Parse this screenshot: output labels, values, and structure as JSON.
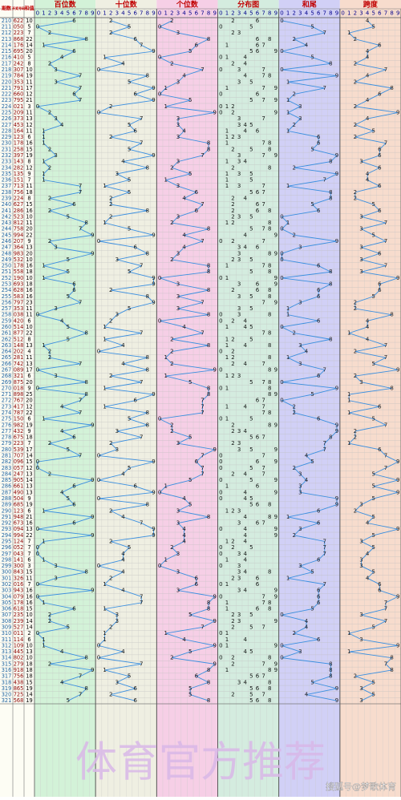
{
  "header": {
    "period": "期数",
    "number": "开奖号码",
    "sum": "和值",
    "groups": [
      "百位数",
      "十位数",
      "个位数",
      "分布图",
      "和尾",
      "跨度"
    ],
    "digits": [
      0,
      1,
      2,
      3,
      4,
      5,
      6,
      7,
      8,
      9
    ]
  },
  "rows": [
    {
      "period": 210,
      "number": "622",
      "sum": 10,
      "digits": [
        6,
        2,
        2
      ],
      "tail": 0,
      "span": 4
    },
    {
      "period": 211,
      "number": "050",
      "sum": 5,
      "digits": [
        0,
        5,
        0
      ],
      "tail": 5,
      "span": 5
    },
    {
      "period": 212,
      "number": "223",
      "sum": 7,
      "digits": [
        2,
        2,
        3
      ],
      "tail": 7,
      "span": 1
    },
    {
      "period": 213,
      "number": "868",
      "sum": 22,
      "digits": [
        8,
        6,
        8
      ],
      "tail": 2,
      "span": 2
    },
    {
      "period": 214,
      "number": "176",
      "sum": 14,
      "digits": [
        1,
        7,
        6
      ],
      "tail": 4,
      "span": 6
    },
    {
      "period": 215,
      "number": "695",
      "sum": 20,
      "digits": [
        6,
        9,
        5
      ],
      "tail": 0,
      "span": 4
    },
    {
      "period": 216,
      "number": "410",
      "sum": 5,
      "digits": [
        4,
        1,
        0
      ],
      "tail": 5,
      "span": 4
    },
    {
      "period": 217,
      "number": "242",
      "sum": 8,
      "digits": [
        2,
        4,
        2
      ],
      "tail": 8,
      "span": 2
    },
    {
      "period": 218,
      "number": "307",
      "sum": 10,
      "digits": [
        3,
        0,
        7
      ],
      "tail": 0,
      "span": 7
    },
    {
      "period": 219,
      "number": "784",
      "sum": 19,
      "digits": [
        7,
        8,
        4
      ],
      "tail": 9,
      "span": 4
    },
    {
      "period": 220,
      "number": "353",
      "sum": 11,
      "digits": [
        3,
        5,
        3
      ],
      "tail": 1,
      "span": 2
    },
    {
      "period": 221,
      "number": "791",
      "sum": 17,
      "digits": [
        7,
        9,
        1
      ],
      "tail": 7,
      "span": 8
    },
    {
      "period": 222,
      "number": "660",
      "sum": 12,
      "digits": [
        6,
        6,
        0
      ],
      "tail": 2,
      "span": 6
    },
    {
      "period": 223,
      "number": "795",
      "sum": 21,
      "digits": [
        7,
        9,
        5
      ],
      "tail": 1,
      "span": 4
    },
    {
      "period": 224,
      "number": "021",
      "sum": 3,
      "digits": [
        0,
        2,
        1
      ],
      "tail": 3,
      "span": 2
    },
    {
      "period": 225,
      "number": "209",
      "sum": 11,
      "digits": [
        2,
        0,
        9
      ],
      "tail": 1,
      "span": 9
    },
    {
      "period": 226,
      "number": "373",
      "sum": 13,
      "digits": [
        3,
        7,
        3
      ],
      "tail": 3,
      "span": 4
    },
    {
      "period": 227,
      "number": "453",
      "sum": 12,
      "digits": [
        4,
        5,
        3
      ],
      "tail": 2,
      "span": 2
    },
    {
      "period": 228,
      "number": "164",
      "sum": 11,
      "digits": [
        1,
        6,
        4
      ],
      "tail": 1,
      "span": 5
    },
    {
      "period": 229,
      "number": "123",
      "sum": 6,
      "digits": [
        1,
        2,
        3
      ],
      "tail": 6,
      "span": 2
    },
    {
      "period": 230,
      "number": "178",
      "sum": 16,
      "digits": [
        1,
        7,
        8
      ],
      "tail": 6,
      "span": 7
    },
    {
      "period": 231,
      "number": "258",
      "sum": 15,
      "digits": [
        2,
        5,
        8
      ],
      "tail": 5,
      "span": 6
    },
    {
      "period": 232,
      "number": "397",
      "sum": 19,
      "digits": [
        3,
        9,
        7
      ],
      "tail": 9,
      "span": 6
    },
    {
      "period": 233,
      "number": "143",
      "sum": 8,
      "digits": [
        1,
        4,
        3
      ],
      "tail": 8,
      "span": 3
    },
    {
      "period": 234,
      "number": "282",
      "sum": 12,
      "digits": [
        2,
        8,
        2
      ],
      "tail": 2,
      "span": 6
    },
    {
      "period": 235,
      "number": "135",
      "sum": 9,
      "digits": [
        1,
        3,
        5
      ],
      "tail": 9,
      "span": 4
    },
    {
      "period": 236,
      "number": "151",
      "sum": 7,
      "digits": [
        1,
        5,
        1
      ],
      "tail": 7,
      "span": 4
    },
    {
      "period": 237,
      "number": "713",
      "sum": 11,
      "digits": [
        7,
        1,
        3
      ],
      "tail": 1,
      "span": 6
    },
    {
      "period": 238,
      "number": "756",
      "sum": 18,
      "digits": [
        7,
        5,
        6
      ],
      "tail": 8,
      "span": 2
    },
    {
      "period": 239,
      "number": "224",
      "sum": 8,
      "digits": [
        2,
        2,
        4
      ],
      "tail": 8,
      "span": 2
    },
    {
      "period": 240,
      "number": "627",
      "sum": 15,
      "digits": [
        6,
        2,
        7
      ],
      "tail": 5,
      "span": 5
    },
    {
      "period": 241,
      "number": "286",
      "sum": 16,
      "digits": [
        2,
        8,
        6
      ],
      "tail": 6,
      "span": 6
    },
    {
      "period": 242,
      "number": "523",
      "sum": 10,
      "digits": [
        5,
        2,
        3
      ],
      "tail": 0,
      "span": 3
    },
    {
      "period": 243,
      "number": "812",
      "sum": 11,
      "digits": [
        8,
        1,
        2
      ],
      "tail": 1,
      "span": 7
    },
    {
      "period": 244,
      "number": "758",
      "sum": 20,
      "digits": [
        7,
        5,
        8
      ],
      "tail": 0,
      "span": 3
    },
    {
      "period": 245,
      "number": "994",
      "sum": 22,
      "digits": [
        9,
        9,
        4
      ],
      "tail": 2,
      "span": 5
    },
    {
      "period": 246,
      "number": "207",
      "sum": 9,
      "digits": [
        2,
        0,
        7
      ],
      "tail": 9,
      "span": 7
    },
    {
      "period": 247,
      "number": "364",
      "sum": 13,
      "digits": [
        3,
        6,
        4
      ],
      "tail": 3,
      "span": 3
    },
    {
      "period": 248,
      "number": "983",
      "sum": 20,
      "digits": [
        9,
        8,
        3
      ],
      "tail": 0,
      "span": 6
    },
    {
      "period": 249,
      "number": "532",
      "sum": 10,
      "digits": [
        5,
        3,
        2
      ],
      "tail": 0,
      "span": 3
    },
    {
      "period": 250,
      "number": "178",
      "sum": 16,
      "digits": [
        1,
        7,
        8
      ],
      "tail": 6,
      "span": 7
    },
    {
      "period": 251,
      "number": "558",
      "sum": 18,
      "digits": [
        5,
        5,
        8
      ],
      "tail": 8,
      "span": 3
    },
    {
      "period": 252,
      "number": "190",
      "sum": 10,
      "digits": [
        1,
        9,
        0
      ],
      "tail": 0,
      "span": 9
    },
    {
      "period": 253,
      "number": "693",
      "sum": 18,
      "digits": [
        6,
        9,
        3
      ],
      "tail": 8,
      "span": 6
    },
    {
      "period": 254,
      "number": "628",
      "sum": 16,
      "digits": [
        6,
        2,
        8
      ],
      "tail": 6,
      "span": 6
    },
    {
      "period": 255,
      "number": "583",
      "sum": 16,
      "digits": [
        5,
        8,
        3
      ],
      "tail": 6,
      "span": 5
    },
    {
      "period": 256,
      "number": "797",
      "sum": 23,
      "digits": [
        7,
        9,
        7
      ],
      "tail": 3,
      "span": 2
    },
    {
      "period": 257,
      "number": "353",
      "sum": 11,
      "digits": [
        3,
        5,
        3
      ],
      "tail": 1,
      "span": 2
    },
    {
      "period": 258,
      "number": "038",
      "sum": 11,
      "digits": [
        0,
        3,
        8
      ],
      "tail": 1,
      "span": 8
    },
    {
      "period": 259,
      "number": "420",
      "sum": 6,
      "digits": [
        4,
        2,
        0
      ],
      "tail": 6,
      "span": 4
    },
    {
      "period": 260,
      "number": "514",
      "sum": 10,
      "digits": [
        5,
        1,
        4
      ],
      "tail": 0,
      "span": 4
    },
    {
      "period": 261,
      "number": "877",
      "sum": 22,
      "digits": [
        8,
        7,
        7
      ],
      "tail": 2,
      "span": 1
    },
    {
      "period": 262,
      "number": "512",
      "sum": 8,
      "digits": [
        5,
        1,
        2
      ],
      "tail": 8,
      "span": 4
    },
    {
      "period": 263,
      "number": "148",
      "sum": 13,
      "digits": [
        1,
        4,
        8
      ],
      "tail": 3,
      "span": 7
    },
    {
      "period": 264,
      "number": "202",
      "sum": 4,
      "digits": [
        2,
        0,
        2
      ],
      "tail": 4,
      "span": 2
    },
    {
      "period": 265,
      "number": "281",
      "sum": 11,
      "digits": [
        2,
        8,
        1
      ],
      "tail": 1,
      "span": 7
    },
    {
      "period": 266,
      "number": "742",
      "sum": 13,
      "digits": [
        7,
        4,
        2
      ],
      "tail": 3,
      "span": 5
    },
    {
      "period": 267,
      "number": "089",
      "sum": 17,
      "digits": [
        0,
        8,
        9
      ],
      "tail": 7,
      "span": 9
    },
    {
      "period": 268,
      "number": "321",
      "sum": 6,
      "digits": [
        3,
        2,
        1
      ],
      "tail": 6,
      "span": 2
    },
    {
      "period": 269,
      "number": "875",
      "sum": 20,
      "digits": [
        8,
        7,
        5
      ],
      "tail": 0,
      "span": 3
    },
    {
      "period": 270,
      "number": "018",
      "sum": 9,
      "digits": [
        0,
        1,
        8
      ],
      "tail": 9,
      "span": 8
    },
    {
      "period": 271,
      "number": "898",
      "sum": 25,
      "digits": [
        8,
        9,
        8
      ],
      "tail": 5,
      "span": 1
    },
    {
      "period": 272,
      "number": "767",
      "sum": 20,
      "digits": [
        7,
        6,
        7
      ],
      "tail": 0,
      "span": 1
    },
    {
      "period": 273,
      "number": "417",
      "sum": 12,
      "digits": [
        4,
        1,
        7
      ],
      "tail": 2,
      "span": 6
    },
    {
      "period": 274,
      "number": "787",
      "sum": 22,
      "digits": [
        7,
        8,
        7
      ],
      "tail": 2,
      "span": 1
    },
    {
      "period": 275,
      "number": "150",
      "sum": 6,
      "digits": [
        1,
        5,
        0
      ],
      "tail": 6,
      "span": 5
    },
    {
      "period": 276,
      "number": "982",
      "sum": 19,
      "digits": [
        9,
        8,
        2
      ],
      "tail": 9,
      "span": 7
    },
    {
      "period": 277,
      "number": "432",
      "sum": 9,
      "digits": [
        4,
        3,
        2
      ],
      "tail": 9,
      "span": 2
    },
    {
      "period": 278,
      "number": "675",
      "sum": 18,
      "digits": [
        6,
        7,
        5
      ],
      "tail": 8,
      "span": 2
    },
    {
      "period": 279,
      "number": "223",
      "sum": 7,
      "digits": [
        2,
        2,
        3
      ],
      "tail": 7,
      "span": 1
    },
    {
      "period": 280,
      "number": "539",
      "sum": 17,
      "digits": [
        5,
        3,
        9
      ],
      "tail": 7,
      "span": 6
    },
    {
      "period": 281,
      "number": "707",
      "sum": 14,
      "digits": [
        7,
        0,
        7
      ],
      "tail": 4,
      "span": 7
    },
    {
      "period": 282,
      "number": "096",
      "sum": 15,
      "digits": [
        0,
        9,
        6
      ],
      "tail": 5,
      "span": 9
    },
    {
      "period": 283,
      "number": "057",
      "sum": 12,
      "digits": [
        0,
        5,
        7
      ],
      "tail": 2,
      "span": 7
    },
    {
      "period": 284,
      "number": "247",
      "sum": 13,
      "digits": [
        2,
        4,
        7
      ],
      "tail": 3,
      "span": 5
    },
    {
      "period": 285,
      "number": "905",
      "sum": 14,
      "digits": [
        9,
        0,
        5
      ],
      "tail": 4,
      "span": 9
    },
    {
      "period": 286,
      "number": "661",
      "sum": 13,
      "digits": [
        6,
        6,
        1
      ],
      "tail": 3,
      "span": 5
    },
    {
      "period": 287,
      "number": "490",
      "sum": 13,
      "digits": [
        4,
        9,
        0
      ],
      "tail": 3,
      "span": 9
    },
    {
      "period": 288,
      "number": "504",
      "sum": 9,
      "digits": [
        5,
        0,
        4
      ],
      "tail": 9,
      "span": 5
    },
    {
      "period": 289,
      "number": "685",
      "sum": 19,
      "digits": [
        6,
        8,
        5
      ],
      "tail": 9,
      "span": 3
    },
    {
      "period": 290,
      "number": "123",
      "sum": 6,
      "digits": [
        1,
        2,
        3
      ],
      "tail": 6,
      "span": 2
    },
    {
      "period": 291,
      "number": "948",
      "sum": 21,
      "digits": [
        9,
        4,
        8
      ],
      "tail": 1,
      "span": 5
    },
    {
      "period": 292,
      "number": "673",
      "sum": 16,
      "digits": [
        6,
        7,
        3
      ],
      "tail": 6,
      "span": 4
    },
    {
      "period": 293,
      "number": "094",
      "sum": 13,
      "digits": [
        0,
        9,
        4
      ],
      "tail": 3,
      "span": 9
    },
    {
      "period": 294,
      "number": "994",
      "sum": 22,
      "digits": [
        9,
        9,
        4
      ],
      "tail": 2,
      "span": 5
    },
    {
      "period": 295,
      "number": "124",
      "sum": 7,
      "digits": [
        1,
        2,
        4
      ],
      "tail": 7,
      "span": 3
    },
    {
      "period": 296,
      "number": "052",
      "sum": 7,
      "digits": [
        0,
        5,
        2
      ],
      "tail": 7,
      "span": 5
    },
    {
      "period": 297,
      "number": "043",
      "sum": 7,
      "digits": [
        0,
        4,
        3
      ],
      "tail": 7,
      "span": 4
    },
    {
      "period": 298,
      "number": "141",
      "sum": 6,
      "digits": [
        1,
        4,
        1
      ],
      "tail": 6,
      "span": 3
    },
    {
      "period": 299,
      "number": "300",
      "sum": 3,
      "digits": [
        3,
        0,
        0
      ],
      "tail": 3,
      "span": 3
    },
    {
      "period": 300,
      "number": "843",
      "sum": 15,
      "digits": [
        8,
        4,
        3
      ],
      "tail": 5,
      "span": 5
    },
    {
      "period": 301,
      "number": "326",
      "sum": 11,
      "digits": [
        3,
        2,
        6
      ],
      "tail": 1,
      "span": 4
    },
    {
      "period": 302,
      "number": "016",
      "sum": 7,
      "digits": [
        0,
        1,
        6
      ],
      "tail": 7,
      "span": 6
    },
    {
      "period": 303,
      "number": "943",
      "sum": 16,
      "digits": [
        9,
        4,
        3
      ],
      "tail": 6,
      "span": 6
    },
    {
      "period": 304,
      "number": "079",
      "sum": 16,
      "digits": [
        0,
        7,
        9
      ],
      "tail": 6,
      "span": 9
    },
    {
      "period": 305,
      "number": "178",
      "sum": 16,
      "digits": [
        1,
        7,
        8
      ],
      "tail": 6,
      "span": 7
    },
    {
      "period": 306,
      "number": "618",
      "sum": 15,
      "digits": [
        6,
        1,
        8
      ],
      "tail": 5,
      "span": 7
    },
    {
      "period": 307,
      "number": "235",
      "sum": 10,
      "digits": [
        2,
        3,
        5
      ],
      "tail": 0,
      "span": 3
    },
    {
      "period": 308,
      "number": "239",
      "sum": 14,
      "digits": [
        2,
        3,
        9
      ],
      "tail": 4,
      "span": 7
    },
    {
      "period": 309,
      "number": "527",
      "sum": 14,
      "digits": [
        5,
        2,
        7
      ],
      "tail": 4,
      "span": 5
    },
    {
      "period": 310,
      "number": "011",
      "sum": 2,
      "digits": [
        0,
        1,
        1
      ],
      "tail": 2,
      "span": 1
    },
    {
      "period": 311,
      "number": "114",
      "sum": 6,
      "digits": [
        1,
        1,
        4
      ],
      "tail": 6,
      "span": 3
    },
    {
      "period": 312,
      "number": "109",
      "sum": 10,
      "digits": [
        1,
        0,
        9
      ],
      "tail": 0,
      "span": 9
    },
    {
      "period": 313,
      "number": "445",
      "sum": 13,
      "digits": [
        4,
        4,
        5
      ],
      "tail": 3,
      "span": 1
    },
    {
      "period": 314,
      "number": "802",
      "sum": 10,
      "digits": [
        8,
        0,
        2
      ],
      "tail": 0,
      "span": 8
    },
    {
      "period": 315,
      "number": "279",
      "sum": 18,
      "digits": [
        2,
        7,
        9
      ],
      "tail": 8,
      "span": 7
    },
    {
      "period": 316,
      "number": "918",
      "sum": 18,
      "digits": [
        9,
        1,
        8
      ],
      "tail": 8,
      "span": 8
    },
    {
      "period": 317,
      "number": "756",
      "sum": 18,
      "digits": [
        7,
        5,
        6
      ],
      "tail": 8,
      "span": 2
    },
    {
      "period": 318,
      "number": "438",
      "sum": 15,
      "digits": [
        4,
        3,
        8
      ],
      "tail": 5,
      "span": 5
    },
    {
      "period": 319,
      "number": "865",
      "sum": 19,
      "digits": [
        8,
        6,
        5
      ],
      "tail": 9,
      "span": 3
    },
    {
      "period": 320,
      "number": "725",
      "sum": 14,
      "digits": [
        7,
        2,
        5
      ],
      "tail": 4,
      "span": 5
    },
    {
      "period": 321,
      "number": "568",
      "sum": 19,
      "digits": [
        5,
        6,
        8
      ],
      "tail": 9,
      "span": 3
    }
  ],
  "footer": {
    "watermark": "体育官方推荐",
    "source": "搜狐号@梦歌体育"
  }
}
